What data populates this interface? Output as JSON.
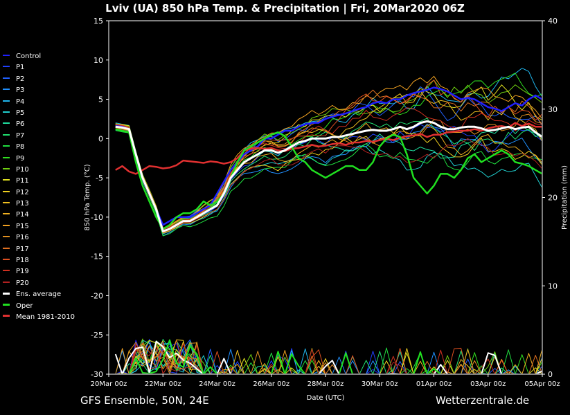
{
  "header": {
    "title": "Lviv  (UA)  850 hPa Temp. & Precipitation | Fri, 20Mar2020 06Z"
  },
  "footer": {
    "model_info": "GFS Ensemble, 50N, 24E",
    "site": "Wetterzentrale.de"
  },
  "legend": {
    "items": [
      {
        "label": "Control",
        "color": "#2020ff"
      },
      {
        "label": "P1",
        "color": "#2040ff"
      },
      {
        "label": "P2",
        "color": "#2060ff"
      },
      {
        "label": "P3",
        "color": "#2090ff"
      },
      {
        "label": "P4",
        "color": "#20b8f0"
      },
      {
        "label": "P5",
        "color": "#20d0d0"
      },
      {
        "label": "P6",
        "color": "#20e0a0"
      },
      {
        "label": "P7",
        "color": "#20e070"
      },
      {
        "label": "P8",
        "color": "#20e040"
      },
      {
        "label": "P9",
        "color": "#30e020"
      },
      {
        "label": "P10",
        "color": "#70d010"
      },
      {
        "label": "P11",
        "color": "#e0e020"
      },
      {
        "label": "P12",
        "color": "#f0d020"
      },
      {
        "label": "P13",
        "color": "#f0c020"
      },
      {
        "label": "P14",
        "color": "#f0b020"
      },
      {
        "label": "P15",
        "color": "#f0a020"
      },
      {
        "label": "P16",
        "color": "#e09020"
      },
      {
        "label": "P17",
        "color": "#e07020"
      },
      {
        "label": "P18",
        "color": "#e05020"
      },
      {
        "label": "P19",
        "color": "#d03020"
      },
      {
        "label": "P20",
        "color": "#b02020"
      },
      {
        "label": "Ens. average",
        "color": "#ffffff"
      },
      {
        "label": "Oper",
        "color": "#20e020"
      },
      {
        "label": "Mean 1981-2010",
        "color": "#e03030"
      }
    ]
  },
  "chart_data": {
    "type": "line",
    "title": "Lviv  (UA)  850 hPa Temp. & Precipitation | Fri, 20Mar2020 06Z",
    "xlabel": "Date (UTC)",
    "ylabel": "850 hPa Temp. (°C)",
    "y2label": "Precipitation (mm)",
    "x_ticks": [
      "20Mar 00z",
      "22Mar 00z",
      "24Mar 00z",
      "26Mar 00z",
      "28Mar 00z",
      "30Mar 00z",
      "01Apr 00z",
      "03Apr 00z",
      "05Apr 00z"
    ],
    "x_range_days": [
      0,
      16
    ],
    "ylim": [
      -30,
      15
    ],
    "y_ticks": [
      15,
      10,
      5,
      0,
      -5,
      -10,
      -15,
      -20,
      -25,
      -30
    ],
    "y2lim": [
      0,
      40
    ],
    "y2_ticks": [
      40,
      30,
      20,
      10,
      0
    ],
    "background": "#000000",
    "axis_color": "#ffffff",
    "x_days": [
      0.25,
      0.5,
      0.75,
      1,
      1.25,
      1.5,
      1.75,
      2,
      2.25,
      2.5,
      2.75,
      3,
      3.25,
      3.5,
      3.75,
      4,
      4.25,
      4.5,
      4.75,
      5,
      5.25,
      5.5,
      5.75,
      6,
      6.25,
      6.5,
      6.75,
      7,
      7.25,
      7.5,
      7.75,
      8,
      8.25,
      8.5,
      8.75,
      9,
      9.25,
      9.5,
      9.75,
      10,
      10.25,
      10.5,
      10.75,
      11,
      11.25,
      11.5,
      11.75,
      12,
      12.25,
      12.5,
      12.75,
      13,
      13.25,
      13.5,
      13.75,
      14,
      14.25,
      14.5,
      14.75,
      15,
      15.25,
      15.5,
      15.75,
      16
    ],
    "ens_average": [
      1.5,
      1.4,
      1.2,
      -2,
      -5,
      -7,
      -9,
      -11.8,
      -11.5,
      -11,
      -10.5,
      -10.5,
      -10,
      -9.5,
      -9,
      -8.5,
      -7,
      -5,
      -4,
      -3,
      -2.5,
      -2,
      -1.5,
      -1.5,
      -1.8,
      -1.5,
      -1,
      -0.5,
      -0.3,
      0,
      0,
      0,
      0.2,
      0.2,
      0.4,
      0.6,
      0.8,
      1,
      1.1,
      1,
      1,
      1.2,
      1.5,
      1.2,
      1.5,
      2,
      2.2,
      2,
      1.5,
      1.2,
      1.2,
      1.4,
      1.5,
      1.5,
      1.3,
      1,
      1.1,
      1.3,
      1.5,
      1.2,
      1.4,
      1.5,
      0.8,
      0.2
    ],
    "oper": [
      1.2,
      1.0,
      0.8,
      -3,
      -6,
      -8,
      -10,
      -11.5,
      -11,
      -10,
      -9.5,
      -9.5,
      -9,
      -8,
      -8.5,
      -8,
      -7,
      -5,
      -3,
      -1.5,
      -1,
      -0.5,
      0,
      0.5,
      0.8,
      0.3,
      -1,
      -2.5,
      -3,
      -4,
      -4.5,
      -5,
      -4.5,
      -4,
      -3.5,
      -3.5,
      -4,
      -4,
      -3,
      -1,
      0,
      0.5,
      0.2,
      -2,
      -5,
      -6,
      -7,
      -6,
      -4.5,
      -4.5,
      -5,
      -4,
      -2.5,
      -2,
      -3,
      -2.5,
      -2,
      -1.5,
      -2,
      -3,
      -3.2,
      -3.5,
      -4,
      -4.5
    ],
    "mean_1981_2010": [
      -4,
      -3.5,
      -4.2,
      -4.5,
      -4,
      -3.5,
      -3.6,
      -3.8,
      -3.7,
      -3.4,
      -2.8,
      -2.9,
      -3,
      -3.1,
      -2.9,
      -3.0,
      -3.2,
      -3.0,
      -2.5,
      -1.5,
      -1.3,
      -1.2,
      -1.3,
      -1.2,
      -1.5,
      -1.6,
      -1.3,
      -1.2,
      -1.0,
      -0.8,
      -1.0,
      -0.9,
      -0.7,
      -0.6,
      -0.8,
      -0.5,
      -0.5,
      -0.3,
      -0.4,
      -0.2,
      0,
      -0.2,
      0.1,
      0.3,
      0.4,
      0.6,
      0.2,
      0.5,
      0.5,
      0.8,
      0.9,
      1.0,
      1.0,
      1.2,
      1.0,
      1.3,
      1.5,
      1.6,
      1.4,
      2.0,
      1.6,
      1.9,
      1.5,
      1.5
    ],
    "control": [
      1.6,
      1.5,
      1.2,
      -2,
      -5,
      -7,
      -9,
      -11,
      -10.5,
      -10,
      -10,
      -10,
      -9.5,
      -9,
      -8.5,
      -7,
      -5.5,
      -4,
      -3,
      -2,
      -1.5,
      -1,
      0,
      0,
      0.5,
      1,
      1,
      1.5,
      1.8,
      2,
      2,
      2.5,
      2.8,
      3,
      3.2,
      3.5,
      3.8,
      4,
      4.5,
      4.7,
      4.5,
      5,
      5,
      5.5,
      5.8,
      6,
      6.2,
      6.5,
      6.3,
      6,
      5.5,
      5,
      5.2,
      5,
      4.5,
      4,
      3.8,
      3.5,
      4,
      4.5,
      4.2,
      5,
      5.5,
      5
    ]
  }
}
